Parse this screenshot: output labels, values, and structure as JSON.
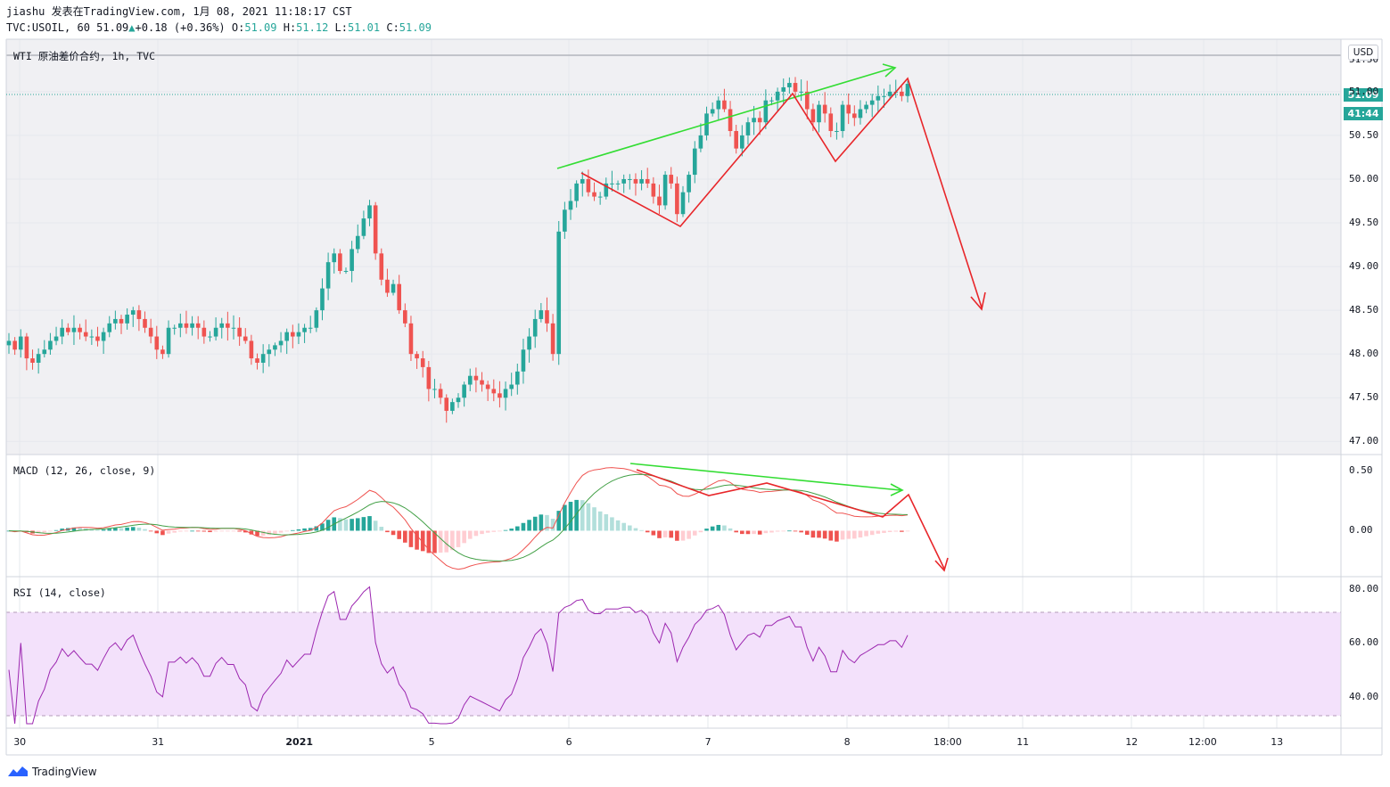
{
  "header": {
    "author": "jiashu",
    "published": "发表在TradingView.com, 1月 08, 2021 11:18:17 CST",
    "symbol": "TVC:USOIL, 60",
    "last": "51.09",
    "change_arrow": "▲",
    "change": "+0.18 (+0.36%)",
    "open_label": "O:",
    "open": "51.09",
    "high_label": "H:",
    "high": "51.12",
    "low_label": "L:",
    "low": "51.01",
    "close_label": "C:",
    "close": "51.09"
  },
  "main_pane": {
    "title": "WTI 原油差价合约, 1h, TVC",
    "currency": "USD",
    "price_tag": "51.09",
    "countdown": "41:44",
    "y_ticks": [
      "51.00",
      "50.50",
      "50.00",
      "49.50",
      "49.00",
      "48.50",
      "48.00",
      "47.50",
      "47.00"
    ],
    "partial_top_tick": "51.50"
  },
  "macd_pane": {
    "title": "MACD (12, 26, close, 9)",
    "y_ticks": [
      "0.50",
      "0.00"
    ]
  },
  "rsi_pane": {
    "title": "RSI (14, close)",
    "y_ticks": [
      "80.00",
      "60.00",
      "40.00"
    ]
  },
  "x_axis": [
    {
      "label": "30",
      "bold": false
    },
    {
      "label": "31",
      "bold": false
    },
    {
      "label": "2021",
      "bold": true
    },
    {
      "label": "5",
      "bold": false
    },
    {
      "label": "6",
      "bold": false
    },
    {
      "label": "7",
      "bold": false
    },
    {
      "label": "8",
      "bold": false
    },
    {
      "label": "18:00",
      "bold": false
    },
    {
      "label": "11",
      "bold": false
    },
    {
      "label": "12",
      "bold": false
    },
    {
      "label": "12:00",
      "bold": false
    },
    {
      "label": "13",
      "bold": false
    }
  ],
  "footer": {
    "brand": "TradingView",
    "icon": "tradingview-logo-icon"
  },
  "colors": {
    "up": "#26a69a",
    "down": "#ef5350",
    "macd_line": "#ef5350",
    "signal_line": "#43a047",
    "rsi_line": "#9c27b0",
    "rsi_band": "#f3e1fb",
    "annotation_green": "#33dd33",
    "annotation_red": "#e8262a",
    "pane_bg": "#f0f0f3"
  },
  "chart_data": [
    {
      "type": "candlestick",
      "title": "WTI 原油差价合约, 1h, TVC",
      "ylim": [
        46.85,
        51.6
      ],
      "x_start": "2020-12-30",
      "interval": "1h",
      "close": [
        48.15,
        48.05,
        48.2,
        47.95,
        47.9,
        48.0,
        48.05,
        48.15,
        48.2,
        48.3,
        48.25,
        48.3,
        48.25,
        48.2,
        48.2,
        48.15,
        48.25,
        48.35,
        48.4,
        48.35,
        48.45,
        48.5,
        48.4,
        48.3,
        48.2,
        48.05,
        48.0,
        48.3,
        48.3,
        48.35,
        48.3,
        48.35,
        48.3,
        48.2,
        48.2,
        48.3,
        48.35,
        48.3,
        48.3,
        48.2,
        48.15,
        47.95,
        47.9,
        48.0,
        48.05,
        48.1,
        48.15,
        48.25,
        48.2,
        48.25,
        48.3,
        48.3,
        48.5,
        48.75,
        49.05,
        49.15,
        48.95,
        48.95,
        49.2,
        49.35,
        49.55,
        49.7,
        49.15,
        48.85,
        48.7,
        48.8,
        48.5,
        48.35,
        48.0,
        47.95,
        47.85,
        47.6,
        47.6,
        47.5,
        47.35,
        47.45,
        47.5,
        47.65,
        47.75,
        47.7,
        47.65,
        47.6,
        47.55,
        47.5,
        47.6,
        47.65,
        47.8,
        48.05,
        48.2,
        48.4,
        48.5,
        48.35,
        48.0,
        49.4,
        49.65,
        49.75,
        49.95,
        50.0,
        49.85,
        49.8,
        49.8,
        49.95,
        49.95,
        49.95,
        50.0,
        50.0,
        49.95,
        50.0,
        49.95,
        49.8,
        49.7,
        50.05,
        49.95,
        49.6,
        49.85,
        50.05,
        50.35,
        50.5,
        50.75,
        50.8,
        50.9,
        50.8,
        50.55,
        50.35,
        50.5,
        50.65,
        50.7,
        50.65,
        50.9,
        50.9,
        51.0,
        51.05,
        51.1,
        51.0,
        51.0,
        50.8,
        50.65,
        50.85,
        50.75,
        50.55,
        50.55,
        50.85,
        50.75,
        50.7,
        50.8,
        50.85,
        50.9,
        50.95,
        50.95,
        51.0,
        51.0,
        50.95,
        51.09
      ],
      "series": [
        {
          "name": "USOIL"
        }
      ]
    },
    {
      "type": "line",
      "title": "MACD (12, 26, close, 9)",
      "ylim": [
        -0.35,
        0.6
      ],
      "series": [
        {
          "name": "MACD"
        },
        {
          "name": "Signal"
        },
        {
          "name": "Histogram"
        }
      ]
    },
    {
      "type": "line",
      "title": "RSI (14, close)",
      "ylim": [
        30,
        82
      ],
      "bands": [
        30,
        70
      ],
      "series": [
        {
          "name": "RSI"
        }
      ]
    }
  ]
}
